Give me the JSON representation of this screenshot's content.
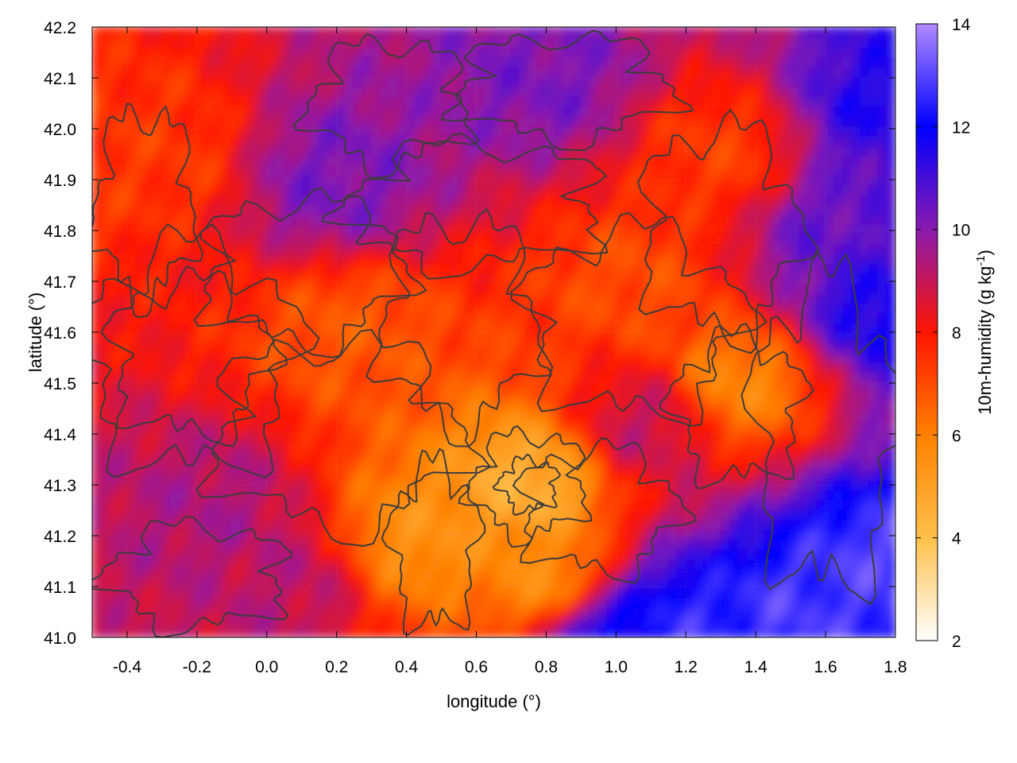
{
  "chart_data": {
    "type": "heatmap",
    "title": "",
    "xlabel": "longitude (°)",
    "ylabel": "latitude (°)",
    "colorbar_label": "10m-humidity (g kg-1)",
    "colorbar_label_parts": {
      "base": "10m-humidity (g kg",
      "sup": "-1",
      "tail": ")"
    },
    "xlim": [
      -0.5,
      1.8
    ],
    "ylim": [
      41.0,
      42.2
    ],
    "clim": [
      2,
      14
    ],
    "x_ticks": [
      -0.4,
      -0.2,
      0.0,
      0.2,
      0.4,
      0.6,
      0.8,
      1.0,
      1.2,
      1.4,
      1.6,
      1.8
    ],
    "x_tick_labels": [
      "-0.4",
      "-0.2",
      "0.0",
      "0.2",
      "0.4",
      "0.6",
      "0.8",
      "1.0",
      "1.2",
      "1.4",
      "1.6",
      "1.8"
    ],
    "y_ticks": [
      41.0,
      41.1,
      41.2,
      41.3,
      41.4,
      41.5,
      41.6,
      41.7,
      41.8,
      41.9,
      42.0,
      42.1,
      42.2
    ],
    "y_tick_labels": [
      "41.0",
      "41.1",
      "41.2",
      "41.3",
      "41.4",
      "41.5",
      "41.6",
      "41.7",
      "41.8",
      "41.9",
      "42.0",
      "42.1",
      "42.2"
    ],
    "cbar_ticks": [
      2,
      4,
      6,
      8,
      10,
      12,
      14
    ],
    "cbar_tick_labels": [
      "2",
      "4",
      "6",
      "8",
      "10",
      "12",
      "14"
    ],
    "colormap": [
      {
        "value": 2,
        "color": "#ffffff"
      },
      {
        "value": 4,
        "color": "#ffc04a"
      },
      {
        "value": 6,
        "color": "#ff8000"
      },
      {
        "value": 8,
        "color": "#ff1500"
      },
      {
        "value": 10,
        "color": "#8a1ab0"
      },
      {
        "value": 12,
        "color": "#0000ff"
      },
      {
        "value": 14,
        "color": "#b08aff"
      }
    ],
    "grid": true,
    "contour_color": "#3c3c3c",
    "humidity_features": [
      {
        "x": -0.3,
        "y": 41.95,
        "value": 7.4
      },
      {
        "x": 0.25,
        "y": 41.6,
        "value": 6.8
      },
      {
        "x": 0.75,
        "y": 41.3,
        "value": 4.5
      },
      {
        "x": 0.45,
        "y": 41.2,
        "value": 5.5
      },
      {
        "x": 0.8,
        "y": 41.12,
        "value": 5.6
      },
      {
        "x": 1.35,
        "y": 41.5,
        "value": 5.8
      },
      {
        "x": 1.05,
        "y": 41.7,
        "value": 7.0
      },
      {
        "x": 1.3,
        "y": 41.95,
        "value": 7.3
      },
      {
        "x": 0.2,
        "y": 41.9,
        "value": 10.2
      },
      {
        "x": 0.8,
        "y": 42.1,
        "value": 10.2
      },
      {
        "x": -0.15,
        "y": 41.25,
        "value": 9.4
      },
      {
        "x": 0.05,
        "y": 41.1,
        "value": 9.2
      },
      {
        "x": 1.65,
        "y": 41.8,
        "value": 10.6
      },
      {
        "x": 1.78,
        "y": 41.65,
        "value": 11.8
      },
      {
        "x": 1.1,
        "y": 41.42,
        "value": 9.0
      },
      {
        "x": 1.5,
        "y": 41.05,
        "value": 12.8
      },
      {
        "x": 1.2,
        "y": 41.02,
        "value": 12.6
      },
      {
        "x": 1.75,
        "y": 41.15,
        "value": 12.9
      },
      {
        "x": 1.0,
        "y": 41.0,
        "value": 12.0
      },
      {
        "x": 1.78,
        "y": 42.05,
        "value": 11.5
      }
    ]
  }
}
